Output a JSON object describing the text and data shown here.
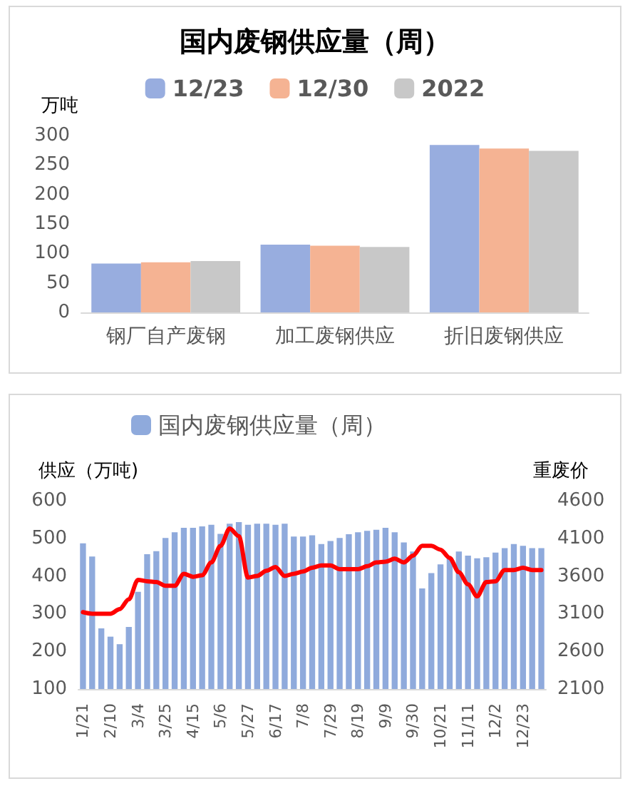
{
  "chart_data": [
    {
      "type": "bar",
      "title": "国内废钢供应量（周）",
      "ylabel": "万吨",
      "categories": [
        "钢厂自产废钢",
        "加工废钢供应",
        "折旧废钢供应"
      ],
      "series": [
        {
          "name": "12/23",
          "color": "#98addf",
          "values": [
            83,
            115,
            284
          ]
        },
        {
          "name": "12/30",
          "color": "#f5b393",
          "values": [
            85,
            113,
            278
          ]
        },
        {
          "name": "2022",
          "color": "#c8c8c8",
          "values": [
            87,
            111,
            274
          ]
        }
      ],
      "ylim": [
        0,
        300
      ],
      "yticks": [
        0,
        50,
        100,
        150,
        200,
        250,
        300
      ],
      "grid": false,
      "legend": "top"
    },
    {
      "type": "bar",
      "ylabel": "供应（万吨)",
      "y2label": "重废价",
      "categories": [
        "1/21",
        null,
        null,
        "2/10",
        null,
        null,
        "3/4",
        null,
        null,
        "3/25",
        null,
        null,
        "4/15",
        null,
        null,
        "5/6",
        null,
        null,
        "5/27",
        null,
        null,
        "6/17",
        null,
        null,
        "7/8",
        null,
        null,
        "7/29",
        null,
        null,
        "8/19",
        null,
        null,
        "9/9",
        null,
        null,
        "9/30",
        null,
        null,
        "10/21",
        null,
        null,
        "11/11",
        null,
        null,
        "12/2",
        null,
        null,
        "12/23",
        null,
        null
      ],
      "series": [
        {
          "name": "国内废钢供应量（周）",
          "color": "#8faadc",
          "values": [
            487,
            452,
            261,
            239,
            219,
            265,
            358,
            458,
            466,
            501,
            516,
            528,
            528,
            532,
            536,
            512,
            539,
            543,
            536,
            539,
            539,
            536,
            539,
            505,
            505,
            508,
            485,
            493,
            501,
            511,
            516,
            520,
            523,
            528,
            516,
            489,
            465,
            367,
            408,
            431,
            447,
            465,
            454,
            447,
            450,
            462,
            474,
            485,
            480,
            474,
            474
          ]
        },
        {
          "type": "line",
          "axis": "y2",
          "color": "#ff0000",
          "values": [
            3120,
            3100,
            3100,
            3100,
            3160,
            3290,
            3550,
            3530,
            3520,
            3470,
            3470,
            3630,
            3590,
            3610,
            3780,
            4000,
            4230,
            4130,
            3580,
            3600,
            3670,
            3720,
            3600,
            3630,
            3660,
            3710,
            3740,
            3740,
            3690,
            3690,
            3690,
            3730,
            3780,
            3790,
            3830,
            3780,
            3870,
            4000,
            4000,
            3950,
            3840,
            3650,
            3490,
            3330,
            3520,
            3530,
            3680,
            3680,
            3710,
            3680,
            3680
          ]
        }
      ],
      "ylim": [
        100,
        600
      ],
      "yticks": [
        100,
        200,
        300,
        400,
        500,
        600
      ],
      "y2lim": [
        2100,
        4600
      ],
      "y2ticks": [
        2100,
        2600,
        3100,
        3600,
        4100,
        4600
      ],
      "grid": false,
      "legend": "top",
      "marker": "none"
    }
  ]
}
